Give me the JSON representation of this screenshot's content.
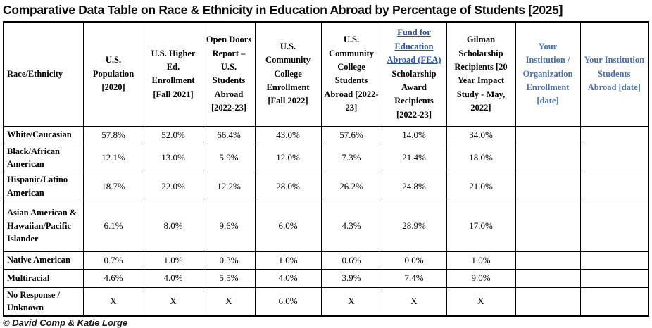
{
  "page": {
    "title": "Comparative Data Table on Race & Ethnicity in Education Abroad by Percentage of Students [2025]",
    "footer": "© David Comp & Katie Lorge"
  },
  "colors": {
    "link_blue": "#2f5496",
    "accent_blue": "#4a70ae",
    "border_black": "#000000"
  },
  "table": {
    "columns": [
      {
        "label": "Race/Ethnicity"
      },
      {
        "label": "U.S. Population [2020]"
      },
      {
        "label": "U.S. Higher Ed. Enrollment [Fall 2021]"
      },
      {
        "label": "Open Doors Report – U.S. Students Abroad [2022-23]"
      },
      {
        "label": "U.S. Community College Enrollment [Fall 2022]"
      },
      {
        "label": "U.S. Community College Students Abroad [2022-23]"
      },
      {
        "link_label": "Fund for Education Abroad (FEA)",
        "label": "Scholarship Award Recipients [2022-23]"
      },
      {
        "label": "Gilman Scholarship Recipients [20 Year Impact Study - May, 2022]"
      },
      {
        "label": "Your Institution / Organization Enrollment [date]"
      },
      {
        "label": "Your Institution Students Abroad [date]"
      }
    ],
    "rows": [
      {
        "label": "White/Caucasian",
        "values": [
          "57.8%",
          "52.0%",
          "66.4%",
          "43.0%",
          "57.6%",
          "14.0%",
          "34.0%",
          "",
          ""
        ]
      },
      {
        "label": "Black/African American",
        "values": [
          "12.1%",
          "13.0%",
          "5.9%",
          "12.0%",
          "7.3%",
          "21.4%",
          "18.0%",
          "",
          ""
        ]
      },
      {
        "label": "Hispanic/Latino American",
        "values": [
          "18.7%",
          "22.0%",
          "12.2%",
          "28.0%",
          "26.2%",
          "24.8%",
          "21.0%",
          "",
          ""
        ]
      },
      {
        "label": "Asian American & Hawaiian/Pacific Islander",
        "values": [
          "6.1%",
          "8.0%",
          "9.6%",
          "6.0%",
          "4.3%",
          "28.9%",
          "17.0%",
          "",
          ""
        ]
      },
      {
        "label": "Native American",
        "values": [
          "0.7%",
          "1.0%",
          "0.3%",
          "1.0%",
          "0.6%",
          "0.0%",
          "1.0%",
          "",
          ""
        ]
      },
      {
        "label": "Multiracial",
        "values": [
          "4.6%",
          "4.0%",
          "5.5%",
          "4.0%",
          "3.9%",
          "7.4%",
          "9.0%",
          "",
          ""
        ]
      },
      {
        "label": "No Response / Unknown",
        "values": [
          "X",
          "X",
          "X",
          "6.0%",
          "X",
          "X",
          "X",
          "",
          ""
        ]
      }
    ]
  }
}
